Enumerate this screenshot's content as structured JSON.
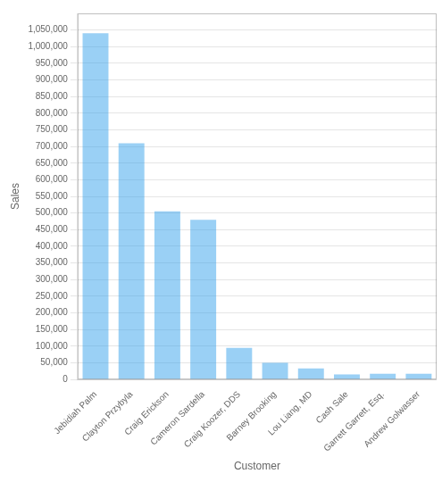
{
  "chart_data": {
    "type": "bar",
    "categories": [
      "Jebidiah Palm",
      "Clayton Przybyla",
      "Craig Erickson",
      "Cameron Sardella",
      "Craig Koozer, DDS",
      "Barney Brooking",
      "Lou Liang, MD",
      "Cash Sale",
      "Garrett Garrett, Esq.",
      "Andrew Golwasser"
    ],
    "values": [
      1040000,
      710000,
      505000,
      480000,
      95000,
      50000,
      33000,
      15000,
      17000,
      17000
    ],
    "xlabel": "Customer",
    "ylabel": "Sales",
    "ylim": [
      0,
      1100000
    ],
    "yticks": [
      0,
      {
        "value": 50000,
        "label": "50,000"
      },
      {
        "value": 100000,
        "label": "100,000"
      },
      {
        "value": 150000,
        "label": "150,000"
      },
      {
        "value": 200000,
        "label": "200,000"
      },
      {
        "value": 250000,
        "label": "250,000"
      },
      {
        "value": 300000,
        "label": "300,000"
      },
      {
        "value": 350000,
        "label": "350,000"
      },
      {
        "value": 400000,
        "label": "400,000"
      },
      {
        "value": 450000,
        "label": "450,000"
      },
      {
        "value": 500000,
        "label": "500,000"
      },
      {
        "value": 550000,
        "label": "550,000"
      },
      {
        "value": 600000,
        "label": "600,000"
      },
      {
        "value": 650000,
        "label": "650,000"
      },
      {
        "value": 700000,
        "label": "700,000"
      },
      {
        "value": 750000,
        "label": "750,000"
      },
      {
        "value": 800000,
        "label": "800,000"
      },
      {
        "value": 850000,
        "label": "850,000"
      },
      {
        "value": 900000,
        "label": "900,000"
      },
      {
        "value": 950000,
        "label": "950,000"
      },
      {
        "value": 1000000,
        "label": "1,000,000"
      },
      {
        "value": 1050000,
        "label": "1,050,000"
      }
    ],
    "grid": true
  }
}
